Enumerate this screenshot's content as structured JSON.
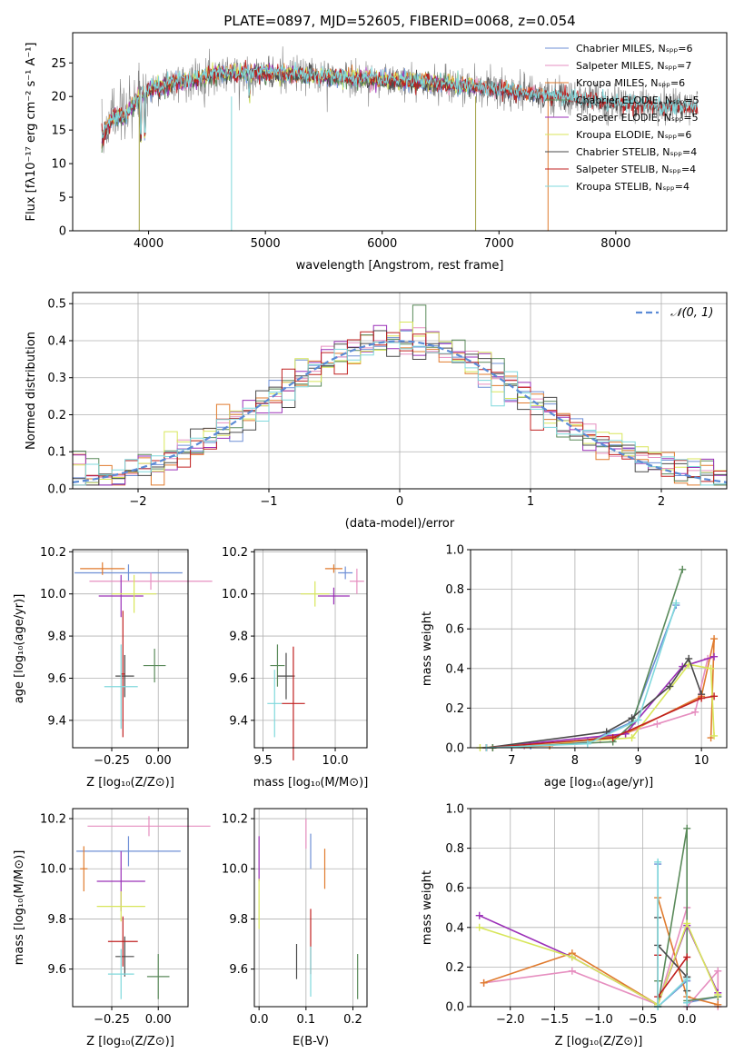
{
  "figure_title": "PLATE=0897, MJD=52605, FIBERID=0068, z=0.054",
  "colors": {
    "Chabrier MILES": "#6e8fd6",
    "Salpeter MILES": "#e68fc0",
    "Kroupa MILES": "#e07b2e",
    "Chabrier ELODIE": "#5a8a5a",
    "Salpeter ELODIE": "#9b30b8",
    "Kroupa ELODIE": "#d8e65a",
    "Chabrier STELIB": "#4a4a4a",
    "Salpeter STELIB": "#c02020",
    "Kroupa STELIB": "#7fd8dc"
  },
  "chart_data": [
    {
      "id": "spectrum",
      "type": "line",
      "xlabel": "wavelength [Angstrom, rest frame]",
      "ylabel": "Flux [fλ10⁻¹⁷ erg cm⁻² s⁻¹ A⁻¹]",
      "xlim": [
        3350,
        8950
      ],
      "ylim": [
        0,
        29.5
      ],
      "xticks": [
        4000,
        5000,
        6000,
        7000,
        8000
      ],
      "yticks": [
        0,
        5,
        10,
        15,
        20,
        25
      ],
      "legend_placement": "top-right",
      "legend": [
        "Chabrier MILES, Nₛₚₚ=6",
        "Salpeter MILES, Nₛₚₚ=7",
        "Kroupa MILES, Nₛₚₚ=6",
        "Chabrier ELODIE, Nₛₚₚ=5",
        "Salpeter ELODIE, Nₛₚₚ=5",
        "Kroupa ELODIE, Nₛₚₚ=6",
        "Chabrier STELIB, Nₛₚₚ=4",
        "Salpeter STELIB, Nₛₚₚ=4",
        "Kroupa STELIB, Nₛₚₚ=4"
      ],
      "continuum": [
        [
          3600,
          14
        ],
        [
          3700,
          17
        ],
        [
          3800,
          17
        ],
        [
          3900,
          19.5
        ],
        [
          4000,
          21
        ],
        [
          4200,
          22
        ],
        [
          4400,
          22.5
        ],
        [
          4600,
          23.5
        ],
        [
          5000,
          23.5
        ],
        [
          5500,
          23
        ],
        [
          6000,
          22.5
        ],
        [
          6500,
          22
        ],
        [
          7000,
          21
        ],
        [
          7500,
          20
        ],
        [
          8000,
          19
        ],
        [
          8500,
          18.5
        ],
        [
          8900,
          18.5
        ]
      ],
      "data_end_by_series": {
        "MILES": 7400,
        "ELODIE": 6800,
        "STELIB": 8700
      }
    },
    {
      "id": "residuals",
      "type": "histogram",
      "xlabel": "(data-model)/error",
      "ylabel": "Normed distribution",
      "xlim": [
        -2.5,
        2.5
      ],
      "ylim": [
        0,
        0.53
      ],
      "xticks": [
        -2,
        -1,
        0,
        1,
        2
      ],
      "yticks": [
        0.0,
        0.1,
        0.2,
        0.3,
        0.4,
        0.5
      ],
      "grid": true,
      "legend": [
        "𝒩(0, 1)"
      ],
      "legend_placement": "top-right",
      "bin_width": 0.1
    },
    {
      "id": "age_vs_Z",
      "type": "errorbar",
      "xlabel": "Z [log₁₀(Z/Z⊙)]",
      "ylabel": "age  [log₁₀(age/yr)]",
      "xlim": [
        -0.46,
        0.16
      ],
      "ylim": [
        9.27,
        10.21
      ],
      "xticks": [
        -0.25,
        0.0
      ],
      "yticks": [
        9.4,
        9.6,
        9.8,
        10.0,
        10.2
      ],
      "points": [
        {
          "series": "Chabrier MILES",
          "x": -0.16,
          "y": 10.1,
          "xerr": 0.29,
          "yerr": 0.04
        },
        {
          "series": "Salpeter MILES",
          "x": -0.04,
          "y": 10.06,
          "xerr": 0.33,
          "yerr": 0.04
        },
        {
          "series": "Kroupa MILES",
          "x": -0.3,
          "y": 10.12,
          "xerr": 0.12,
          "yerr": 0.03
        },
        {
          "series": "Chabrier ELODIE",
          "x": -0.02,
          "y": 9.66,
          "xerr": 0.06,
          "yerr": 0.08
        },
        {
          "series": "Salpeter ELODIE",
          "x": -0.2,
          "y": 9.99,
          "xerr": 0.12,
          "yerr": 0.1
        },
        {
          "series": "Kroupa ELODIE",
          "x": -0.13,
          "y": 10.0,
          "xerr": 0.12,
          "yerr": 0.09
        },
        {
          "series": "Chabrier STELIB",
          "x": -0.18,
          "y": 9.61,
          "xerr": 0.05,
          "yerr": 0.1
        },
        {
          "series": "Salpeter STELIB",
          "x": -0.19,
          "y": 9.62,
          "xerr": 0.01,
          "yerr": 0.3
        },
        {
          "series": "Kroupa STELIB",
          "x": -0.2,
          "y": 9.56,
          "xerr": 0.09,
          "yerr": 0.2
        }
      ]
    },
    {
      "id": "age_vs_mass",
      "type": "errorbar",
      "xlabel": "mass [log₁₀(M/M⊙)]",
      "ylabel": "",
      "xlim": [
        9.44,
        10.22
      ],
      "ylim": [
        9.27,
        10.21
      ],
      "xticks": [
        9.5,
        10.0
      ],
      "yticks": [
        9.4,
        9.6,
        9.8,
        10.0,
        10.2
      ],
      "points": [
        {
          "series": "Chabrier MILES",
          "x": 10.07,
          "y": 10.1,
          "xerr": 0.05,
          "yerr": 0.03
        },
        {
          "series": "Salpeter MILES",
          "x": 10.15,
          "y": 10.06,
          "xerr": 0.05,
          "yerr": 0.06
        },
        {
          "series": "Kroupa MILES",
          "x": 9.99,
          "y": 10.12,
          "xerr": 0.06,
          "yerr": 0.02
        },
        {
          "series": "Chabrier ELODIE",
          "x": 9.6,
          "y": 9.66,
          "xerr": 0.05,
          "yerr": 0.1
        },
        {
          "series": "Salpeter ELODIE",
          "x": 9.99,
          "y": 9.99,
          "xerr": 0.11,
          "yerr": 0.04
        },
        {
          "series": "Kroupa ELODIE",
          "x": 9.86,
          "y": 10.0,
          "xerr": 0.1,
          "yerr": 0.06
        },
        {
          "series": "Chabrier STELIB",
          "x": 9.66,
          "y": 9.61,
          "xerr": 0.06,
          "yerr": 0.11
        },
        {
          "series": "Salpeter STELIB",
          "x": 9.71,
          "y": 9.48,
          "xerr": 0.08,
          "yerr": 0.27
        },
        {
          "series": "Kroupa STELIB",
          "x": 9.58,
          "y": 9.48,
          "xerr": 0.05,
          "yerr": 0.16
        }
      ]
    },
    {
      "id": "mass_weight_vs_age",
      "type": "line",
      "xlabel": "age  [log₁₀(age/yr)]",
      "ylabel": "mass weight",
      "xlim": [
        6.35,
        10.4
      ],
      "ylim": [
        0,
        1
      ],
      "xticks": [
        7,
        8,
        9,
        10
      ],
      "yticks": [
        0.0,
        0.2,
        0.4,
        0.6,
        0.8,
        1.0
      ],
      "grid": true,
      "series": [
        {
          "name": "Chabrier MILES",
          "x": [
            6.7,
            7.3,
            8.2,
            8.9,
            9.6
          ],
          "y": [
            0.0,
            0.01,
            0.03,
            0.13,
            0.72
          ]
        },
        {
          "name": "Salpeter MILES",
          "x": [
            6.6,
            7.2,
            8.4,
            9.3,
            9.9,
            10.1
          ],
          "y": [
            0.0,
            0.01,
            0.04,
            0.12,
            0.18,
            0.45
          ]
        },
        {
          "name": "Kroupa MILES",
          "x": [
            6.7,
            7.6,
            8.8,
            10.0,
            10.2,
            10.15
          ],
          "y": [
            0.0,
            0.01,
            0.07,
            0.26,
            0.55,
            0.05
          ]
        },
        {
          "name": "Chabrier ELODIE",
          "x": [
            6.7,
            8.6,
            8.9,
            9.7
          ],
          "y": [
            0.0,
            0.03,
            0.12,
            0.9
          ]
        },
        {
          "name": "Salpeter ELODIE",
          "x": [
            6.6,
            8.8,
            9.7,
            10.2
          ],
          "y": [
            0.0,
            0.07,
            0.41,
            0.46
          ]
        },
        {
          "name": "Kroupa ELODIE",
          "x": [
            6.5,
            8.9,
            9.8,
            10.15,
            10.2
          ],
          "y": [
            0.0,
            0.05,
            0.42,
            0.4,
            0.06
          ]
        },
        {
          "name": "Chabrier STELIB",
          "x": [
            6.6,
            8.5,
            8.9,
            9.5,
            9.8,
            10.0
          ],
          "y": [
            0.0,
            0.08,
            0.15,
            0.31,
            0.45,
            0.27
          ]
        },
        {
          "name": "Salpeter STELIB",
          "x": [
            6.6,
            8.6,
            10.0,
            10.2
          ],
          "y": [
            0.0,
            0.05,
            0.25,
            0.26
          ]
        },
        {
          "name": "Kroupa STELIB",
          "x": [
            6.6,
            8.2,
            9.0,
            9.6
          ],
          "y": [
            0.0,
            0.02,
            0.14,
            0.73
          ]
        }
      ]
    },
    {
      "id": "mass_vs_Z",
      "type": "errorbar",
      "xlabel": "Z [log₁₀(Z/Z⊙)]",
      "ylabel": "mass [log₁₀(M/M⊙)]",
      "xlim": [
        -0.46,
        0.16
      ],
      "ylim": [
        9.45,
        10.24
      ],
      "xticks": [
        -0.25,
        0.0
      ],
      "yticks": [
        9.6,
        9.8,
        10.0,
        10.2
      ],
      "points": [
        {
          "series": "Chabrier MILES",
          "x": -0.16,
          "y": 10.07,
          "xerr": 0.28,
          "yerr": 0.06
        },
        {
          "series": "Salpeter MILES",
          "x": -0.05,
          "y": 10.17,
          "xerr": 0.33,
          "yerr": 0.04
        },
        {
          "series": "Kroupa MILES",
          "x": -0.4,
          "y": 10.0,
          "xerr": 0.02,
          "yerr": 0.09
        },
        {
          "series": "Chabrier ELODIE",
          "x": 0.0,
          "y": 9.57,
          "xerr": 0.06,
          "yerr": 0.09
        },
        {
          "series": "Salpeter ELODIE",
          "x": -0.2,
          "y": 9.95,
          "xerr": 0.13,
          "yerr": 0.12
        },
        {
          "series": "Kroupa ELODIE",
          "x": -0.2,
          "y": 9.85,
          "xerr": 0.13,
          "yerr": 0.06
        },
        {
          "series": "Chabrier STELIB",
          "x": -0.18,
          "y": 9.65,
          "xerr": 0.05,
          "yerr": 0.08
        },
        {
          "series": "Salpeter STELIB",
          "x": -0.19,
          "y": 9.71,
          "xerr": 0.08,
          "yerr": 0.1
        },
        {
          "series": "Kroupa STELIB",
          "x": -0.2,
          "y": 9.58,
          "xerr": 0.07,
          "yerr": 0.1
        }
      ]
    },
    {
      "id": "mass_vs_ebv",
      "type": "errorbar",
      "xlabel": "E(B-V)",
      "ylabel": "",
      "xlim": [
        -0.01,
        0.23
      ],
      "ylim": [
        9.45,
        10.24
      ],
      "xticks": [
        0.0,
        0.1,
        0.2
      ],
      "yticks": [
        9.6,
        9.8,
        10.0,
        10.2
      ],
      "points": [
        {
          "series": "Chabrier MILES",
          "x": 0.11,
          "y": 10.07,
          "xerr": 0.0,
          "yerr": 0.07
        },
        {
          "series": "Salpeter MILES",
          "x": 0.1,
          "y": 10.14,
          "xerr": 0.0,
          "yerr": 0.06
        },
        {
          "series": "Kroupa MILES",
          "x": 0.14,
          "y": 10.0,
          "xerr": 0.0,
          "yerr": 0.08
        },
        {
          "series": "Chabrier ELODIE",
          "x": 0.21,
          "y": 9.57,
          "xerr": 0.0,
          "yerr": 0.09
        },
        {
          "series": "Salpeter ELODIE",
          "x": 0.0,
          "y": 10.04,
          "xerr": 0.0,
          "yerr": 0.09
        },
        {
          "series": "Kroupa ELODIE",
          "x": 0.0,
          "y": 9.86,
          "xerr": 0.0,
          "yerr": 0.1
        },
        {
          "series": "Chabrier STELIB",
          "x": 0.08,
          "y": 9.63,
          "xerr": 0.0,
          "yerr": 0.07
        },
        {
          "series": "Salpeter STELIB",
          "x": 0.11,
          "y": 9.71,
          "xerr": 0.0,
          "yerr": 0.13
        },
        {
          "series": "Kroupa STELIB",
          "x": 0.11,
          "y": 9.59,
          "xerr": 0.0,
          "yerr": 0.1
        }
      ]
    },
    {
      "id": "mass_weight_vs_Z",
      "type": "line",
      "xlabel": "Z [log₁₀(Z/Z⊙)]",
      "ylabel": "mass weight",
      "xlim": [
        -2.45,
        0.45
      ],
      "ylim": [
        0,
        1
      ],
      "xticks": [
        -2.0,
        -1.5,
        -1.0,
        -0.5,
        0.0
      ],
      "yticks": [
        0.0,
        0.2,
        0.4,
        0.6,
        0.8,
        1.0
      ],
      "grid": true,
      "series": [
        {
          "name": "Chabrier MILES",
          "x": [
            -0.33,
            -0.33,
            0.0,
            0.0,
            0.35
          ],
          "y": [
            0.72,
            0.0,
            0.13,
            0.02,
            0.05
          ]
        },
        {
          "name": "Salpeter MILES",
          "x": [
            -2.3,
            -1.3,
            -0.33,
            0.0,
            0.0,
            0.35,
            0.35
          ],
          "y": [
            0.12,
            0.18,
            0.01,
            0.5,
            0.0,
            0.18,
            0.0
          ]
        },
        {
          "name": "Kroupa MILES",
          "x": [
            -2.3,
            -1.3,
            -0.33,
            -0.33,
            0.0,
            0.35
          ],
          "y": [
            0.12,
            0.27,
            0.01,
            0.55,
            0.05,
            0.01
          ]
        },
        {
          "name": "Chabrier ELODIE",
          "x": [
            -0.33,
            -0.33,
            0.0,
            0.0,
            0.35
          ],
          "y": [
            0.13,
            0.0,
            0.9,
            0.03,
            0.05
          ]
        },
        {
          "name": "Salpeter ELODIE",
          "x": [
            -2.35,
            -1.3,
            -0.33,
            0.0,
            0.35
          ],
          "y": [
            0.46,
            0.25,
            0.01,
            0.41,
            0.07
          ]
        },
        {
          "name": "Kroupa ELODIE",
          "x": [
            -2.35,
            -1.3,
            -0.33,
            0.0,
            0.35
          ],
          "y": [
            0.4,
            0.25,
            0.01,
            0.42,
            0.06
          ]
        },
        {
          "name": "Chabrier STELIB",
          "x": [
            -0.33,
            -0.33,
            0.0,
            0.0
          ],
          "y": [
            0.45,
            0.31,
            0.15,
            0.08
          ]
        },
        {
          "name": "Salpeter STELIB",
          "x": [
            -0.33,
            -0.33,
            0.0
          ],
          "y": [
            0.26,
            0.05,
            0.25
          ]
        },
        {
          "name": "Kroupa STELIB",
          "x": [
            -0.33,
            -0.33,
            0.0,
            0.0
          ],
          "y": [
            0.73,
            0.0,
            0.14,
            0.02
          ]
        }
      ]
    }
  ]
}
